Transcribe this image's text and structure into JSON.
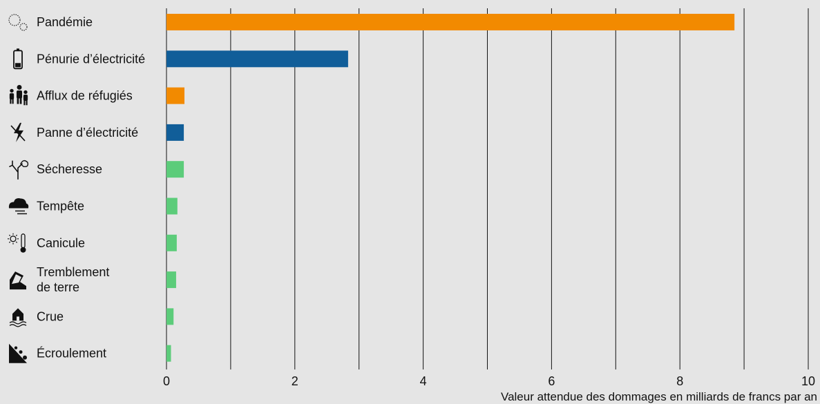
{
  "chart_data": {
    "type": "bar",
    "orientation": "horizontal",
    "xlabel": "Valeur attendue des dommages en milliards de francs par an",
    "xlim": [
      0,
      10
    ],
    "xticks": [
      0,
      2,
      4,
      6,
      8,
      10
    ],
    "grid": "vertical",
    "colors": {
      "orange": "#f28a00",
      "blue": "#115e99",
      "green": "#5ccc7a"
    },
    "categories": [
      {
        "label": [
          "Pandémie"
        ],
        "value": 8.85,
        "color": "#f28a00",
        "icon": "virus-icon"
      },
      {
        "label": [
          "Pénurie d’électricité"
        ],
        "value": 2.83,
        "color": "#115e99",
        "icon": "battery-low-icon"
      },
      {
        "label": [
          "Afflux de réfugiés"
        ],
        "value": 0.28,
        "color": "#f28a00",
        "icon": "refugees-icon"
      },
      {
        "label": [
          "Panne d’électricité"
        ],
        "value": 0.27,
        "color": "#115e99",
        "icon": "power-outage-icon"
      },
      {
        "label": [
          "Sécheresse"
        ],
        "value": 0.27,
        "color": "#5ccc7a",
        "icon": "dry-tree-icon"
      },
      {
        "label": [
          "Tempête"
        ],
        "value": 0.17,
        "color": "#5ccc7a",
        "icon": "storm-cloud-icon"
      },
      {
        "label": [
          "Canicule"
        ],
        "value": 0.16,
        "color": "#5ccc7a",
        "icon": "heatwave-icon"
      },
      {
        "label": [
          "Tremblement",
          "de terre"
        ],
        "value": 0.15,
        "color": "#5ccc7a",
        "icon": "earthquake-icon"
      },
      {
        "label": [
          "Crue"
        ],
        "value": 0.11,
        "color": "#5ccc7a",
        "icon": "flood-icon"
      },
      {
        "label": [
          "Écroulement"
        ],
        "value": 0.07,
        "color": "#5ccc7a",
        "icon": "rockfall-icon"
      }
    ]
  }
}
